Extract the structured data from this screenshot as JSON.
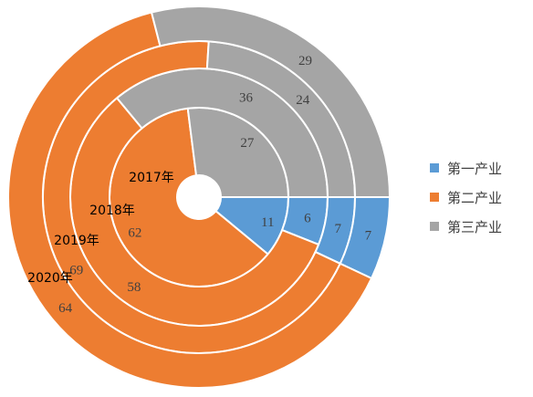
{
  "chart_data": {
    "type": "doughnut",
    "ring_labels": [
      "2017年",
      "2018年",
      "2019年",
      "2020年"
    ],
    "series": [
      {
        "name": "第一产业",
        "values": [
          11,
          6,
          7,
          7
        ],
        "color": "#5b9bd5"
      },
      {
        "name": "第二产业",
        "values": [
          62,
          58,
          69,
          64
        ],
        "color": "#ed7d31"
      },
      {
        "name": "第三产业",
        "values": [
          27,
          36,
          24,
          29
        ],
        "color": "#a5a5a5"
      }
    ],
    "legend_position": "right"
  }
}
